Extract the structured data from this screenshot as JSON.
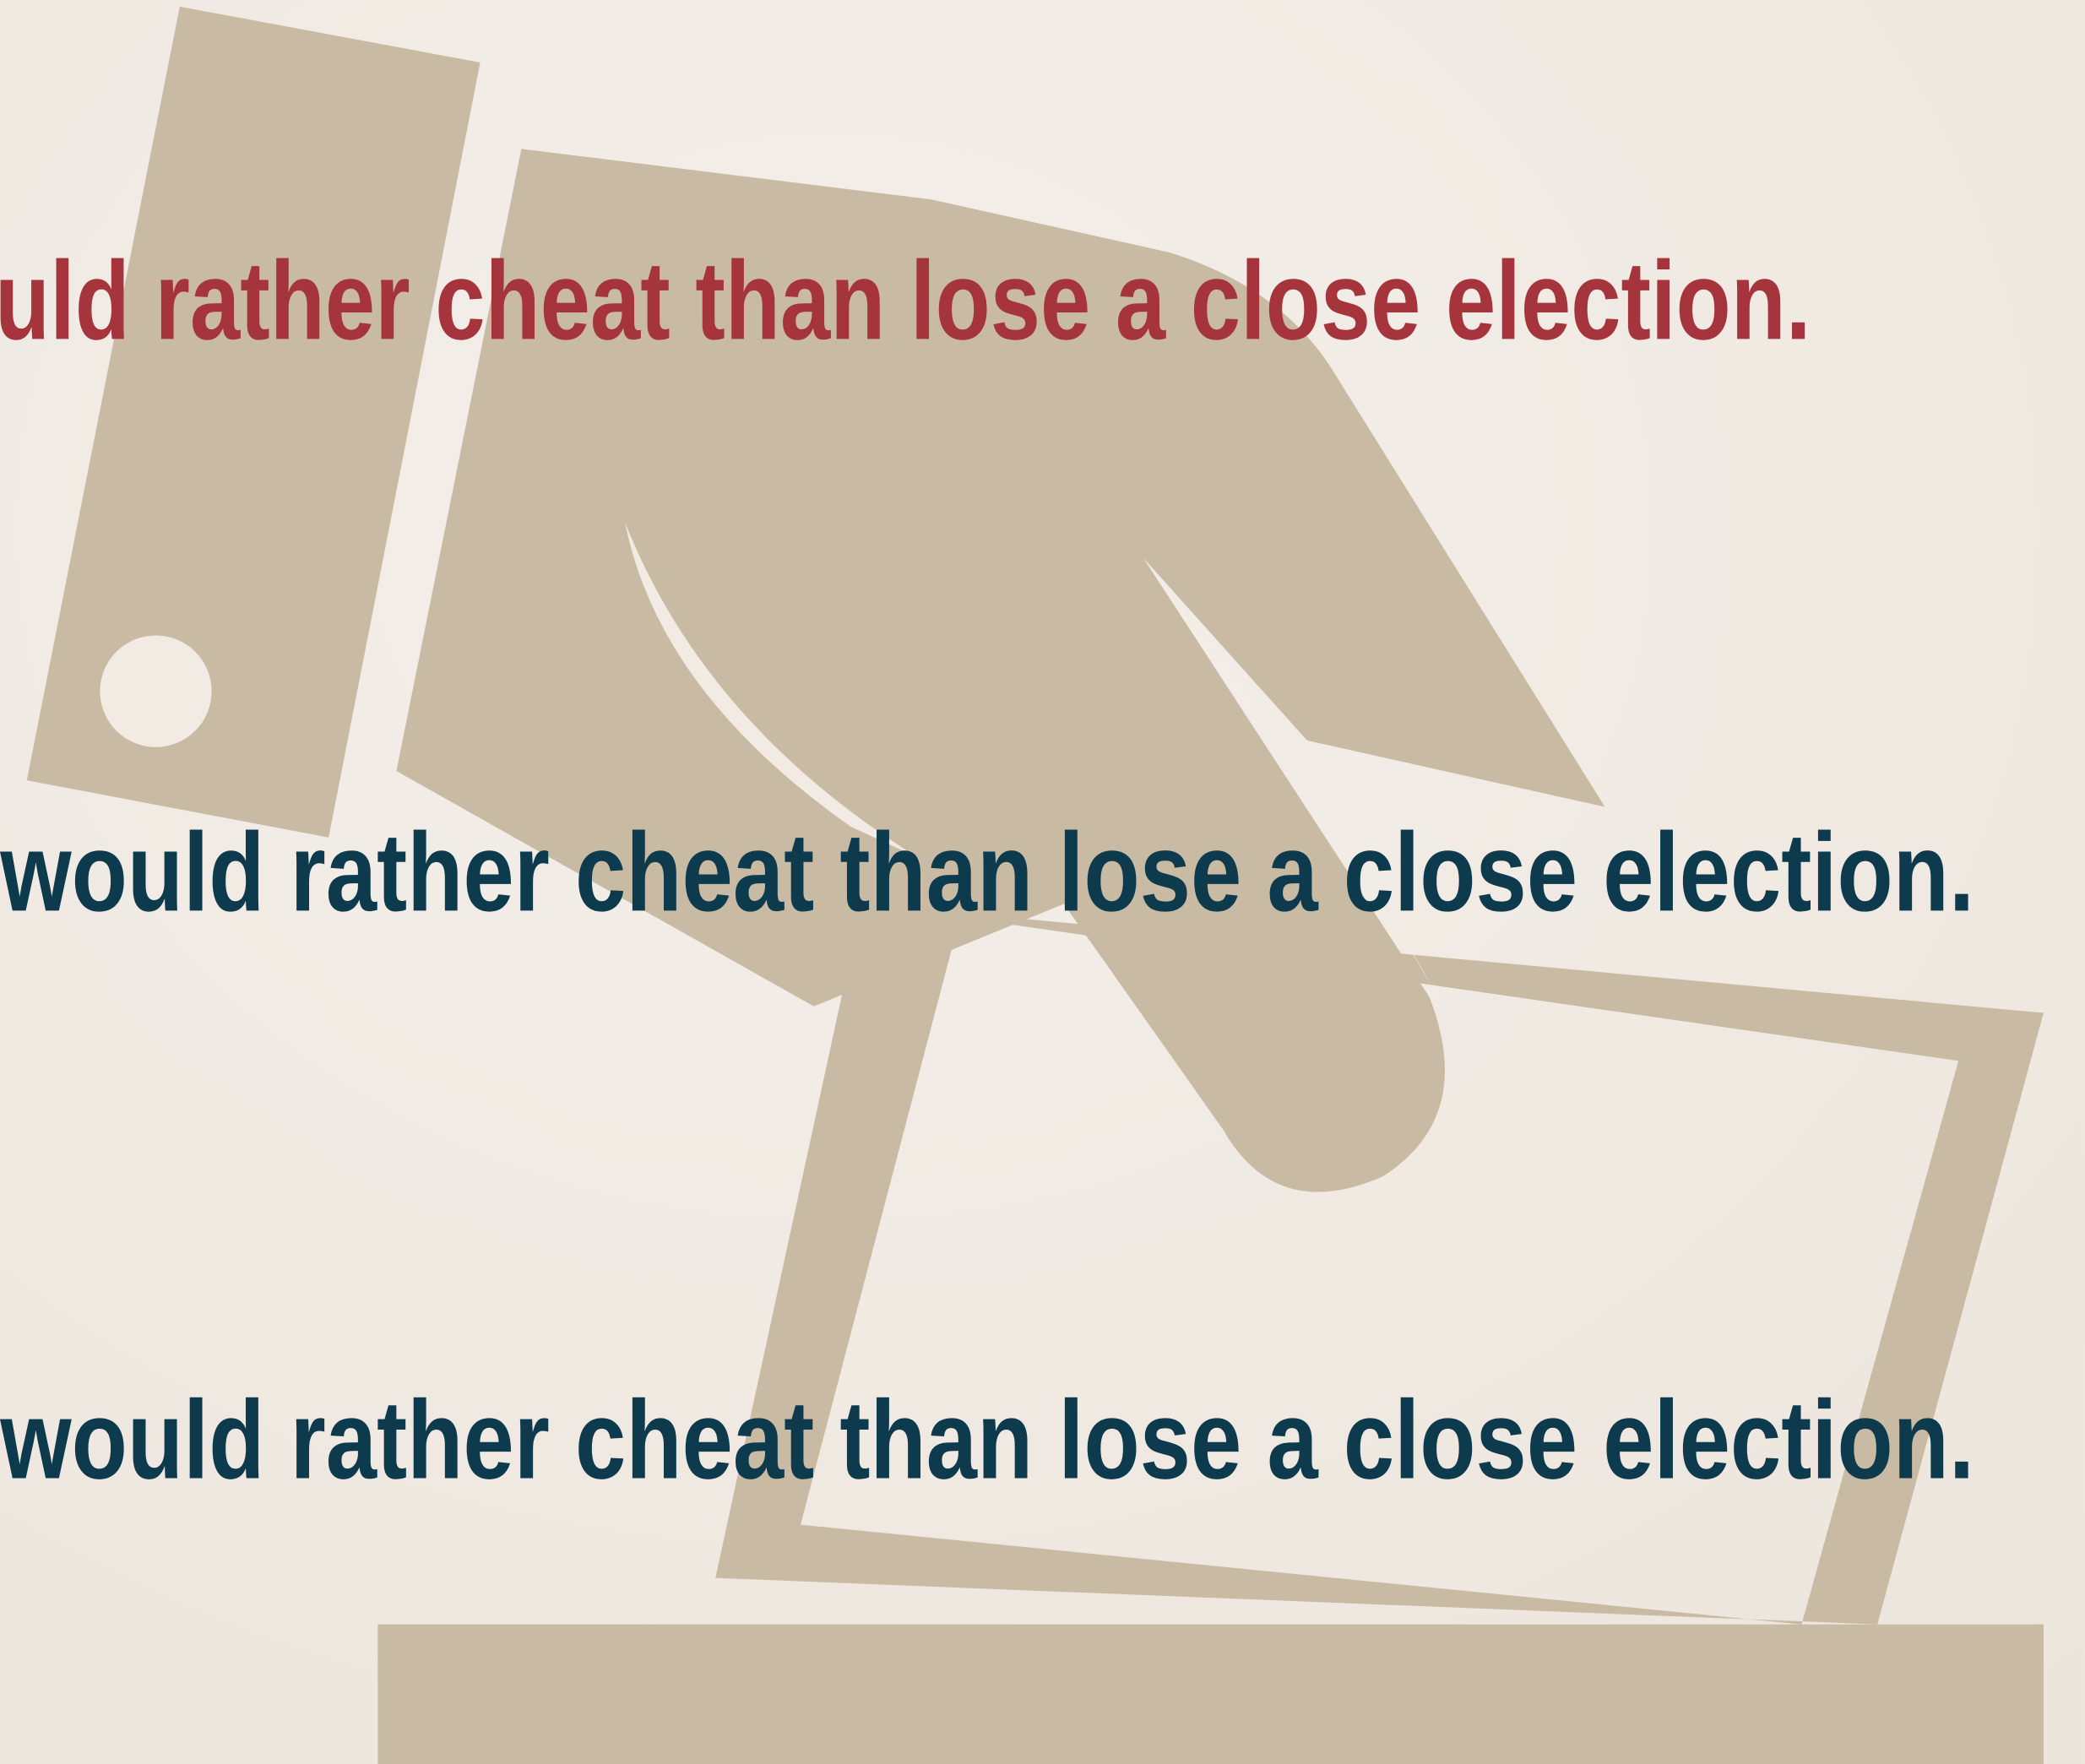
{
  "lines": [
    "uld rather cheat than lose a close election.",
    "would rather cheat than lose a close election.",
    "would rather cheat than lose a close election."
  ]
}
